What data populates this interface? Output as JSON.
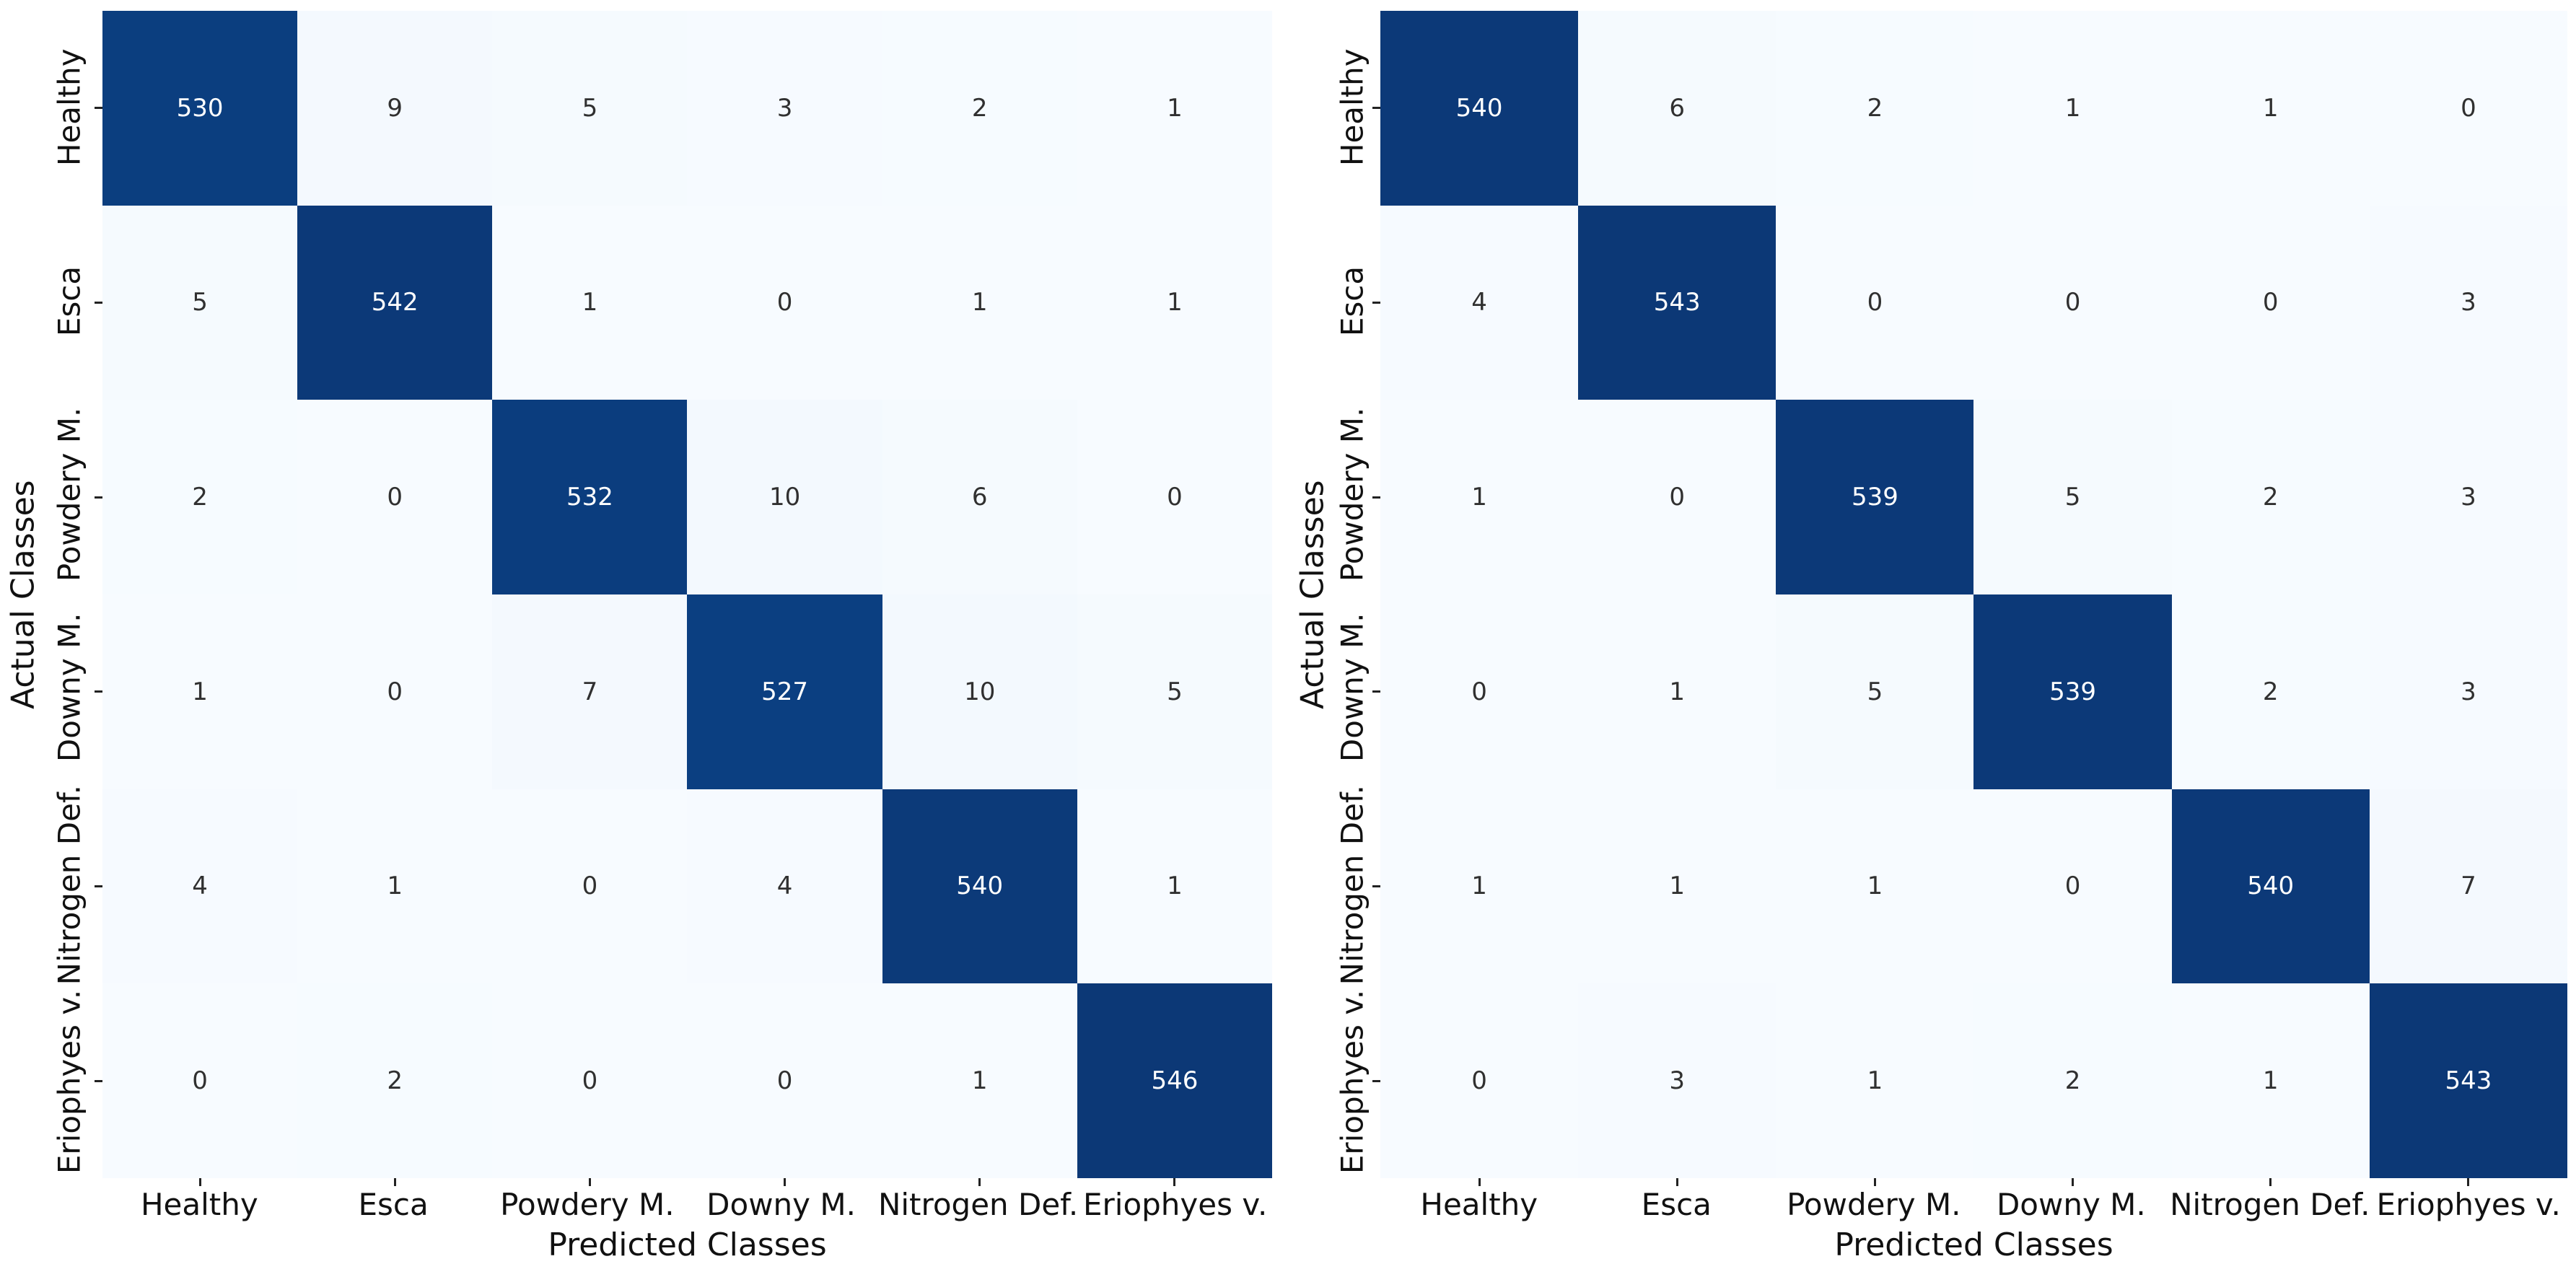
{
  "axes": {
    "x_title": "Predicted Classes",
    "y_title": "Actual Classes"
  },
  "colors": {
    "background": "#ffffff",
    "tick_mark": "#222222",
    "label_text": "#111111",
    "annot_on_light": "#303030",
    "annot_on_dark": "#ffffff",
    "cmap_blues": [
      [
        0.0,
        "#f7fbff"
      ],
      [
        0.125,
        "#deebf7"
      ],
      [
        0.25,
        "#c6dbef"
      ],
      [
        0.375,
        "#9ecae1"
      ],
      [
        0.5,
        "#6baed6"
      ],
      [
        0.625,
        "#4292c6"
      ],
      [
        0.75,
        "#2171b5"
      ],
      [
        0.875,
        "#08519c"
      ],
      [
        1.0,
        "#0c3876"
      ]
    ]
  },
  "chart_data": [
    {
      "type": "heatmap",
      "name": "confusion matrix (left)",
      "xlabel": "Predicted Classes",
      "ylabel": "Actual Classes",
      "x_tick_labels": [
        "Healthy",
        "Esca",
        "Powdery M.",
        "Downy M.",
        "Nitrogen Def.",
        "Eriophyes v."
      ],
      "y_tick_labels": [
        "Healthy",
        "Esca",
        "Powdery M.",
        "Downy M.",
        "Nitrogen Def.",
        "Eriophyes v."
      ],
      "vmin": 0,
      "vmax": 546,
      "matrix": [
        [
          530,
          9,
          5,
          3,
          2,
          1
        ],
        [
          5,
          542,
          1,
          0,
          1,
          1
        ],
        [
          2,
          0,
          532,
          10,
          6,
          0
        ],
        [
          1,
          0,
          7,
          527,
          10,
          5
        ],
        [
          4,
          1,
          0,
          4,
          540,
          1
        ],
        [
          0,
          2,
          0,
          0,
          1,
          546
        ]
      ]
    },
    {
      "type": "heatmap",
      "name": "confusion matrix (right)",
      "xlabel": "Predicted Classes",
      "ylabel": "Actual Classes",
      "x_tick_labels": [
        "Healthy",
        "Esca",
        "Powdery M.",
        "Downy M.",
        "Nitrogen Def.",
        "Eriophyes v."
      ],
      "y_tick_labels": [
        "Healthy",
        "Esca",
        "Powdery M.",
        "Downy M.",
        "Nitrogen Def.",
        "Eriophyes v."
      ],
      "vmin": 0,
      "vmax": 543,
      "matrix": [
        [
          540,
          6,
          2,
          1,
          1,
          0
        ],
        [
          4,
          543,
          0,
          0,
          0,
          3
        ],
        [
          1,
          0,
          539,
          5,
          2,
          3
        ],
        [
          0,
          1,
          5,
          539,
          2,
          3
        ],
        [
          1,
          1,
          1,
          0,
          540,
          7
        ],
        [
          0,
          3,
          1,
          2,
          1,
          543
        ]
      ]
    }
  ]
}
